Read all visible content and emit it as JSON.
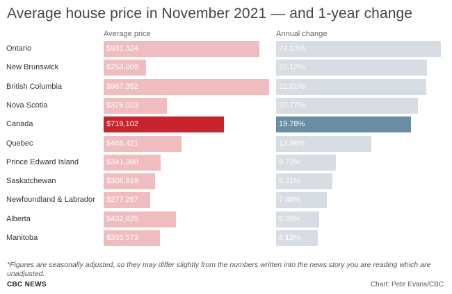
{
  "chart_data": {
    "type": "bar",
    "title": "Average house price in November 2021 — and 1-year change",
    "categories": [
      "Ontario",
      "New Brunswick",
      "British Columbia",
      "Nova Scotia",
      "Canada",
      "Quebec",
      "Prince Edward Island",
      "Saskatchewan",
      "Newfoundland & Labrador",
      "Alberta",
      "Manitoba"
    ],
    "highlight": "Canada",
    "series": [
      {
        "name": "Average price",
        "values": [
          931324,
          253009,
          987352,
          376023,
          719102,
          466421,
          341380,
          306919,
          277267,
          432825,
          335573
        ],
        "labels": [
          "$931,324",
          "$253,009",
          "$987,352",
          "$376,023",
          "$719,102",
          "$466,421",
          "$341,380",
          "$306,919",
          "$277,267",
          "$432,825",
          "$335,573"
        ],
        "color": "#efbcc0",
        "highlight_color": "#c8232c",
        "label_color": "#ffffff"
      },
      {
        "name": "Annual change",
        "values": [
          24.13,
          22.12,
          22.01,
          20.77,
          19.78,
          13.96,
          8.73,
          8.21,
          7.46,
          6.35,
          6.12
        ],
        "labels": [
          "24.13%",
          "22.12%",
          "22.01%",
          "20.77%",
          "19.78%",
          "13.96%",
          "8.73%",
          "8.21%",
          "7.46%",
          "6.35%",
          "6.12%"
        ],
        "color": "#d7dde3",
        "highlight_color": "#6b8da3",
        "label_color": "#ffffff"
      }
    ],
    "footnote": "*Figures are seasonally adjusted, so they may differ slightly from the numbers written into the news story you are reading which are unadjusted.",
    "source": "CBC NEWS",
    "credit": "Chart: Pete Evans/CBC"
  }
}
